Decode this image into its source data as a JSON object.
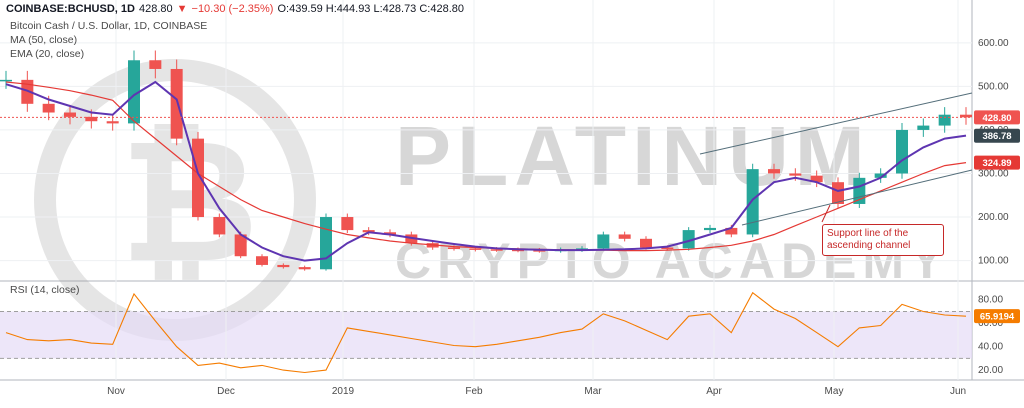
{
  "header": {
    "symbol": "COINBASE:BCHUSD, 1D",
    "last": "428.80",
    "change": "−10.30 (−2.35%)",
    "ohlc": "O:439.59  H:444.93  L:428.73  C:428.80"
  },
  "watermark": {
    "line1": "PLATINUM",
    "line2": "CRYPTO ACADEMY"
  },
  "annotation": "Support line of the ascending channel",
  "colors": {
    "up": "#26a69a",
    "down": "#ef5350",
    "ema": "#5e35b1",
    "ma": "#e53935",
    "rsi": "#f57c00",
    "band": "#e6dbf7"
  },
  "chart_data": [
    {
      "type": "candlestick",
      "title": "Bitcoin Cash / U.S. Dollar, 1D, COINBASE",
      "xlabel": "",
      "ylabel": "",
      "x_ticks": [
        "Nov",
        "Dec",
        "2019",
        "Feb",
        "Mar",
        "Apr",
        "May",
        "Jun"
      ],
      "y_ticks": [
        100,
        200,
        300,
        400,
        500,
        600
      ],
      "ylim": [
        60,
        680
      ],
      "grid": true,
      "series": [
        {
          "name": "MA (50, close)",
          "values": [
            510,
            505,
            498,
            490,
            480,
            468,
            420,
            380,
            340,
            300,
            270,
            240,
            215,
            200,
            185,
            172,
            160,
            152,
            145,
            140,
            136,
            132,
            130,
            128,
            127,
            126,
            125,
            124,
            124,
            123,
            123,
            124,
            126,
            130,
            135,
            145,
            160,
            180,
            200,
            220,
            240,
            260,
            280,
            300,
            318,
            325
          ]
        },
        {
          "name": "EMA (20, close)",
          "values": [
            505,
            490,
            470,
            455,
            440,
            435,
            480,
            510,
            470,
            300,
            220,
            160,
            130,
            110,
            100,
            105,
            140,
            165,
            160,
            152,
            145,
            138,
            132,
            128,
            126,
            125,
            124,
            124,
            125,
            126,
            128,
            132,
            145,
            160,
            175,
            240,
            280,
            290,
            280,
            260,
            270,
            290,
            330,
            360,
            380,
            387
          ]
        },
        {
          "name": "Close",
          "values": [
            515,
            460,
            440,
            430,
            420,
            415,
            560,
            540,
            380,
            200,
            160,
            110,
            90,
            85,
            80,
            200,
            170,
            165,
            160,
            140,
            130,
            128,
            126,
            125,
            124,
            123,
            125,
            128,
            160,
            150,
            130,
            128,
            170,
            175,
            160,
            310,
            300,
            295,
            280,
            230,
            290,
            300,
            400,
            410,
            435,
            429
          ]
        }
      ],
      "levels": [
        {
          "name": "last",
          "value": 428.8,
          "label": "428.80"
        },
        {
          "name": "ema20",
          "value": 386.78,
          "label": "386.78"
        },
        {
          "name": "ma50",
          "value": 324.89,
          "label": "324.89"
        }
      ]
    },
    {
      "type": "line",
      "title": "RSI (14, close)",
      "y_ticks": [
        20,
        40,
        60,
        80
      ],
      "ylim": [
        15,
        90
      ],
      "bands": [
        30,
        70
      ],
      "series": [
        {
          "name": "RSI",
          "values": [
            52,
            46,
            45,
            46,
            43,
            42,
            85,
            62,
            40,
            24,
            26,
            22,
            24,
            20,
            18,
            20,
            56,
            53,
            50,
            47,
            44,
            41,
            40,
            42,
            45,
            48,
            52,
            55,
            68,
            62,
            54,
            46,
            66,
            68,
            52,
            86,
            72,
            64,
            52,
            40,
            56,
            58,
            76,
            70,
            67,
            66
          ]
        }
      ],
      "value_label": "65.9194"
    }
  ]
}
